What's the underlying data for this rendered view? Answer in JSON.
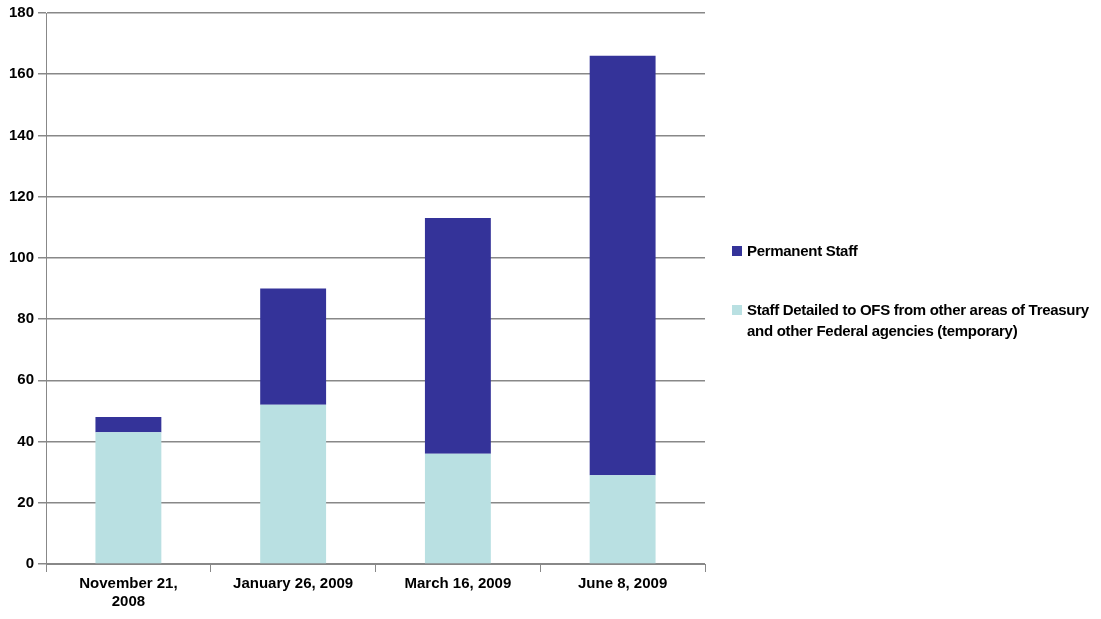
{
  "chart_data": {
    "type": "bar",
    "stacked": true,
    "categories": [
      "November 21, 2008",
      "January 26, 2009",
      "March 16, 2009",
      "June 8, 2009"
    ],
    "series": [
      {
        "name": "Staff Detailed to OFS from other areas of Treasury and other Federal agencies (temporary)",
        "color": "#b9e0e2",
        "values": [
          43,
          52,
          36,
          29
        ]
      },
      {
        "name": "Permanent Staff",
        "color": "#343399",
        "values": [
          5,
          38,
          77,
          137
        ]
      }
    ],
    "ylim": [
      0,
      180
    ],
    "yticks": [
      0,
      20,
      40,
      60,
      80,
      100,
      120,
      140,
      160,
      180
    ],
    "grid": "y",
    "legend": "right"
  }
}
